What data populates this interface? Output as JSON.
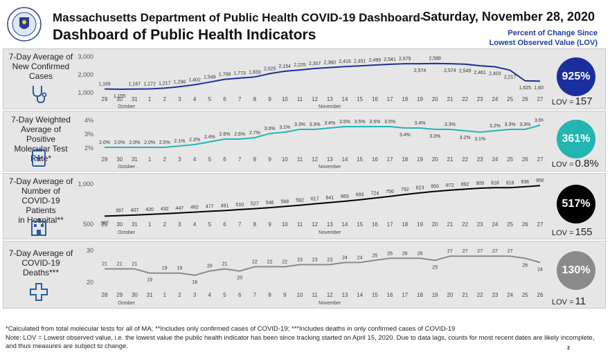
{
  "header": {
    "title_line1": "Massachusetts Department of Public Health COVID-19 Dashboard-",
    "title_line2": "Dashboard of Public Health Indicators",
    "date": "Saturday, November 28, 2020",
    "change_line1": "Percent of Change Since",
    "change_line2": "Lowest Observed Value (LOV)"
  },
  "colors": {
    "panel_bg": "#e6e6e6",
    "cases": "#1a2f9c",
    "positivity": "#22b5b2",
    "hospital": "#000000",
    "deaths": "#8a8a8a",
    "title_blue": "#1f3b9e"
  },
  "footnotes": {
    "line1": "*Calculated from total molecular tests for all of MA; **Includes only confirmed cases of COVID-19; ***Includes deaths in only confirmed cases of COVID-19",
    "line2": "Note:  LOV = Lowest observed value, i.e. the lowest value the public health indicator has been since tracking started on April 15, 2020. Due to data lags, counts for most recent dates are likely incomplete, and thus measures are subject to change.",
    "page": "2"
  },
  "panels": [
    {
      "label_lines": [
        "7-Day Average of",
        "New Confirmed",
        "Cases"
      ],
      "icon": "stethoscope-icon",
      "pct": "925%",
      "lov_label": "LOV =",
      "lov_value": "157"
    },
    {
      "label_lines": [
        "7-Day Weighted",
        "Average of Positive",
        "Molecular Test Rate*"
      ],
      "icon": "clipboard-icon",
      "pct": "361%",
      "lov_label": "LOV =",
      "lov_value": "0.8%"
    },
    {
      "label_lines": [
        "7-Day Average of",
        "Number of",
        "COVID-19 Patients",
        "in Hospital**"
      ],
      "icon": "hospital-icon",
      "pct": "517%",
      "lov_label": "LOV =",
      "lov_value": "155"
    },
    {
      "label_lines": [
        "7-Day Average of",
        "COVID-19",
        "Deaths***"
      ],
      "icon": "cross-icon",
      "pct": "130%",
      "lov_label": "LOV =",
      "lov_value": "11"
    }
  ],
  "chart_data": [
    {
      "type": "line",
      "name": "cases",
      "x": [
        "29",
        "30",
        "31",
        "1",
        "2",
        "3",
        "4",
        "5",
        "6",
        "7",
        "8",
        "9",
        "10",
        "11",
        "12",
        "13",
        "14",
        "15",
        "16",
        "17",
        "18",
        "19",
        "20",
        "21",
        "22",
        "23",
        "24",
        "25",
        "26",
        "27"
      ],
      "month_labels": [
        "October",
        "November"
      ],
      "values": [
        1169,
        1155,
        1167,
        1172,
        1217,
        1298,
        1402,
        1549,
        1708,
        1773,
        1833,
        2025,
        2154,
        2225,
        2307,
        2360,
        2415,
        2451,
        2499,
        2541,
        2575,
        2574,
        2588,
        2574,
        2549,
        2461,
        2403,
        2217,
        1625,
        1607
      ],
      "value_labels": [
        "1,169",
        "1,155",
        "1,167",
        "1,172",
        "1,217",
        "1,298",
        "1,402",
        "1,549",
        "1,708",
        "1,773",
        "1,833",
        "2,025",
        "2,154",
        "2,225",
        "2,307",
        "2,360",
        "2,415",
        "2,451",
        "2,499",
        "2,541",
        "2,575",
        "2,574",
        "2,588",
        "2,574",
        "2,549",
        "2,461",
        "2,403",
        "2,217",
        "1,625",
        "1,607"
      ],
      "y_ticks": [
        "3,000",
        "2,000",
        "1,000"
      ],
      "ylim": [
        1000,
        3000
      ]
    },
    {
      "type": "line",
      "name": "positivity",
      "x": [
        "29",
        "30",
        "31",
        "1",
        "2",
        "3",
        "4",
        "5",
        "6",
        "7",
        "8",
        "9",
        "10",
        "11",
        "12",
        "13",
        "14",
        "15",
        "16",
        "17",
        "18",
        "19",
        "20",
        "21",
        "22",
        "23",
        "24",
        "25",
        "26",
        "27"
      ],
      "month_labels": [
        "October",
        "November"
      ],
      "values": [
        2.0,
        2.0,
        2.0,
        2.0,
        2.0,
        2.1,
        2.2,
        2.4,
        2.6,
        2.6,
        2.7,
        3.0,
        3.1,
        3.3,
        3.3,
        3.4,
        3.5,
        3.5,
        3.5,
        3.5,
        3.4,
        3.4,
        3.3,
        3.3,
        3.2,
        3.1,
        3.2,
        3.3,
        3.3,
        3.6
      ],
      "value_labels": [
        "2.0%",
        "2.0%",
        "2.0%",
        "2.0%",
        "2.0%",
        "2.1%",
        "2.2%",
        "2.4%",
        "2.6%",
        "2.6%",
        "2.7%",
        "3.0%",
        "3.1%",
        "3.3%",
        "3.3%",
        "3.4%",
        "3.5%",
        "3.5%",
        "3.5%",
        "3.5%",
        "3.4%",
        "3.4%",
        "3.3%",
        "3.3%",
        "3.2%",
        "3.1%",
        "3.2%",
        "3.3%",
        "3.3%",
        "3.6%"
      ],
      "y_ticks": [
        "4%",
        "3%",
        "2%"
      ],
      "ylim": [
        2,
        4
      ]
    },
    {
      "type": "line",
      "name": "hospital",
      "x": [
        "29",
        "30",
        "31",
        "1",
        "2",
        "3",
        "4",
        "5",
        "6",
        "7",
        "8",
        "9",
        "10",
        "11",
        "12",
        "13",
        "14",
        "15",
        "16",
        "17",
        "18",
        "19",
        "20",
        "21",
        "22",
        "23",
        "24",
        "25",
        "26",
        "27"
      ],
      "month_labels": [
        "October",
        "November"
      ],
      "values": [
        387,
        397,
        407,
        420,
        432,
        447,
        462,
        477,
        491,
        510,
        527,
        546,
        568,
        592,
        617,
        641,
        665,
        693,
        724,
        756,
        792,
        823,
        850,
        872,
        892,
        909,
        918,
        918,
        936,
        958
      ],
      "value_labels": [
        "387",
        "397",
        "407",
        "420",
        "432",
        "447",
        "462",
        "477",
        "491",
        "510",
        "527",
        "546",
        "568",
        "592",
        "617",
        "641",
        "665",
        "693",
        "724",
        "756",
        "792",
        "823",
        "850",
        "872",
        "892",
        "909",
        "918",
        "918",
        "936",
        "958"
      ],
      "y_ticks": [
        "1,000",
        "500"
      ],
      "ylim": [
        250,
        1000
      ]
    },
    {
      "type": "line",
      "name": "deaths",
      "x": [
        "28",
        "29",
        "30",
        "31",
        "1",
        "2",
        "3",
        "4",
        "5",
        "6",
        "7",
        "8",
        "9",
        "10",
        "11",
        "12",
        "13",
        "14",
        "15",
        "16",
        "17",
        "18",
        "19",
        "20",
        "21",
        "22",
        "23",
        "24",
        "25",
        "26"
      ],
      "month_labels": [
        "October",
        "November"
      ],
      "values": [
        21,
        21,
        21,
        19,
        19,
        19,
        18,
        20,
        21,
        20,
        22,
        22,
        22,
        23,
        23,
        23,
        24,
        24,
        25,
        26,
        26,
        26,
        25,
        27,
        27,
        27,
        27,
        27,
        26,
        24
      ],
      "value_labels": [
        "21",
        "21",
        "21",
        "19",
        "19",
        "19",
        "18",
        "20",
        "21",
        "20",
        "22",
        "22",
        "22",
        "23",
        "23",
        "23",
        "24",
        "24",
        "25",
        "26",
        "26",
        "26",
        "25",
        "27",
        "27",
        "27",
        "27",
        "27",
        "26",
        "24"
      ],
      "y_ticks": [
        "30",
        "20"
      ],
      "ylim": [
        15,
        30
      ]
    }
  ]
}
